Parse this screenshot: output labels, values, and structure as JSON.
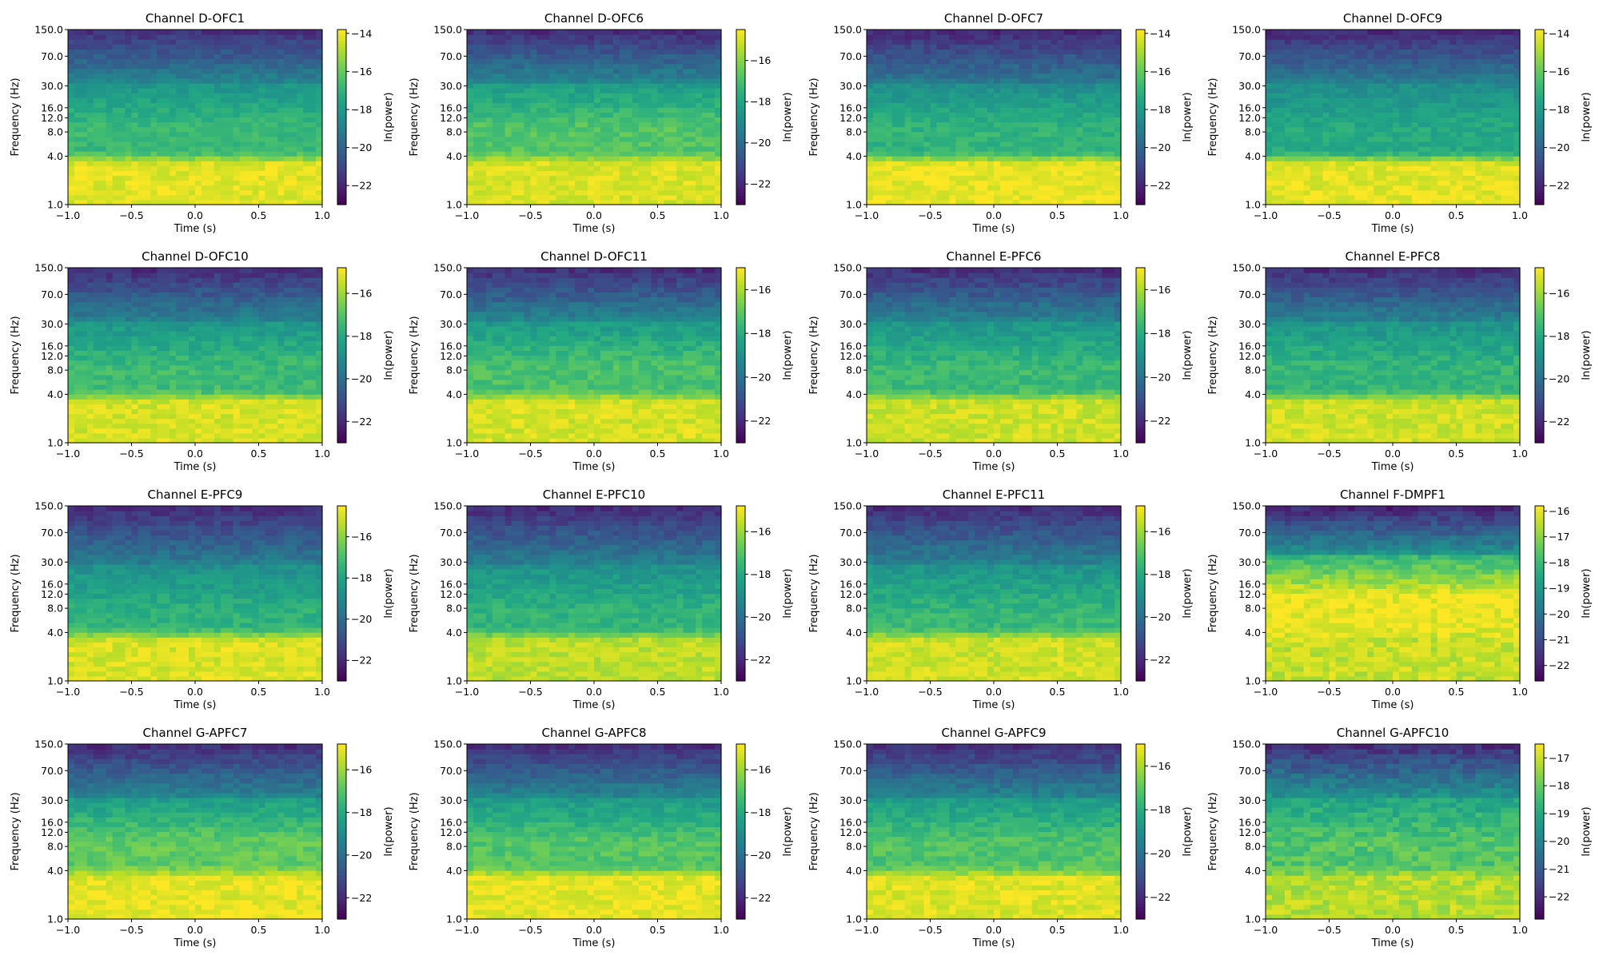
{
  "figure": {
    "subplot_count": 16,
    "grid": "4x4"
  },
  "colors": {
    "colormap": "viridis",
    "axis": "#000000",
    "background": "#ffffff"
  },
  "chart_data": [
    {
      "type": "heatmap",
      "title": "Channel D-OFC1",
      "xlabel": "Time (s)",
      "ylabel": "Frequency (Hz)",
      "colorbar_label": "ln(power)",
      "xlim": [
        -1.0,
        1.0
      ],
      "ylim": [
        1.0,
        150.0
      ],
      "yscale": "log",
      "x_ticks": [
        -1.0,
        -0.5,
        0.0,
        0.5,
        1.0
      ],
      "x_tick_labels": [
        "−1.0",
        "−0.5",
        "0.0",
        "0.5",
        "1.0"
      ],
      "y_ticks": [
        1.0,
        4.0,
        8.0,
        12.0,
        16.0,
        30.0,
        70.0,
        150.0
      ],
      "y_tick_labels": [
        "1.0",
        "4.0",
        "8.0",
        "12.0",
        "16.0",
        "30.0",
        "70.0",
        "150.0"
      ],
      "clim": [
        -23,
        -13.8
      ],
      "colorbar_ticks": [
        -14,
        -16,
        -18,
        -20,
        -22
      ],
      "colorbar_tick_labels": [
        "−14",
        "−16",
        "−18",
        "−20",
        "−22"
      ],
      "profile": {
        "low_freq": -14.2,
        "theta": -16.8,
        "mid": -18.8,
        "high": -21.8,
        "theta_band": [
          4,
          8
        ]
      }
    },
    {
      "type": "heatmap",
      "title": "Channel D-OFC6",
      "xlabel": "Time (s)",
      "ylabel": "Frequency (Hz)",
      "colorbar_label": "ln(power)",
      "xlim": [
        -1.0,
        1.0
      ],
      "ylim": [
        1.0,
        150.0
      ],
      "yscale": "log",
      "x_ticks": [
        -1.0,
        -0.5,
        0.0,
        0.5,
        1.0
      ],
      "x_tick_labels": [
        "−1.0",
        "−0.5",
        "0.0",
        "0.5",
        "1.0"
      ],
      "y_ticks": [
        1.0,
        4.0,
        8.0,
        12.0,
        16.0,
        30.0,
        70.0,
        150.0
      ],
      "y_tick_labels": [
        "1.0",
        "4.0",
        "8.0",
        "12.0",
        "16.0",
        "30.0",
        "70.0",
        "150.0"
      ],
      "clim": [
        -23,
        -14.5
      ],
      "colorbar_ticks": [
        -16,
        -18,
        -20,
        -22
      ],
      "colorbar_tick_labels": [
        "−16",
        "−18",
        "−20",
        "−22"
      ],
      "profile": {
        "low_freq": -15.0,
        "theta": -16.8,
        "mid": -19.0,
        "high": -22.0,
        "theta_band": [
          4,
          8
        ]
      }
    },
    {
      "type": "heatmap",
      "title": "Channel D-OFC7",
      "xlabel": "Time (s)",
      "ylabel": "Frequency (Hz)",
      "colorbar_label": "ln(power)",
      "xlim": [
        -1.0,
        1.0
      ],
      "ylim": [
        1.0,
        150.0
      ],
      "yscale": "log",
      "x_ticks": [
        -1.0,
        -0.5,
        0.0,
        0.5,
        1.0
      ],
      "x_tick_labels": [
        "−1.0",
        "−0.5",
        "0.0",
        "0.5",
        "1.0"
      ],
      "y_ticks": [
        1.0,
        4.0,
        8.0,
        12.0,
        16.0,
        30.0,
        70.0,
        150.0
      ],
      "y_tick_labels": [
        "1.0",
        "4.0",
        "8.0",
        "12.0",
        "16.0",
        "30.0",
        "70.0",
        "150.0"
      ],
      "clim": [
        -23,
        -13.8
      ],
      "colorbar_ticks": [
        -14,
        -16,
        -18,
        -20,
        -22
      ],
      "colorbar_tick_labels": [
        "−14",
        "−16",
        "−18",
        "−20",
        "−22"
      ],
      "profile": {
        "low_freq": -14.1,
        "theta": -17.0,
        "mid": -19.2,
        "high": -22.0,
        "theta_band": [
          4,
          8
        ]
      }
    },
    {
      "type": "heatmap",
      "title": "Channel D-OFC9",
      "xlabel": "Time (s)",
      "ylabel": "Frequency (Hz)",
      "colorbar_label": "ln(power)",
      "xlim": [
        -1.0,
        1.0
      ],
      "ylim": [
        1.0,
        150.0
      ],
      "yscale": "log",
      "x_ticks": [
        -1.0,
        -0.5,
        0.0,
        0.5,
        1.0
      ],
      "x_tick_labels": [
        "−1.0",
        "−0.5",
        "0.0",
        "0.5",
        "1.0"
      ],
      "y_ticks": [
        1.0,
        4.0,
        8.0,
        12.0,
        16.0,
        30.0,
        70.0,
        150.0
      ],
      "y_tick_labels": [
        "1.0",
        "4.0",
        "8.0",
        "12.0",
        "16.0",
        "30.0",
        "70.0",
        "150.0"
      ],
      "clim": [
        -23,
        -13.8
      ],
      "colorbar_ticks": [
        -14,
        -16,
        -18,
        -20,
        -22
      ],
      "colorbar_tick_labels": [
        "−14",
        "−16",
        "−18",
        "−20",
        "−22"
      ],
      "profile": {
        "low_freq": -14.2,
        "theta": -17.4,
        "mid": -19.0,
        "high": -22.0,
        "theta_band": [
          4,
          8
        ]
      }
    },
    {
      "type": "heatmap",
      "title": "Channel D-OFC10",
      "xlabel": "Time (s)",
      "ylabel": "Frequency (Hz)",
      "colorbar_label": "ln(power)",
      "xlim": [
        -1.0,
        1.0
      ],
      "ylim": [
        1.0,
        150.0
      ],
      "yscale": "log",
      "x_ticks": [
        -1.0,
        -0.5,
        0.0,
        0.5,
        1.0
      ],
      "x_tick_labels": [
        "−1.0",
        "−0.5",
        "0.0",
        "0.5",
        "1.0"
      ],
      "y_ticks": [
        1.0,
        4.0,
        8.0,
        12.0,
        16.0,
        30.0,
        70.0,
        150.0
      ],
      "y_tick_labels": [
        "1.0",
        "4.0",
        "8.0",
        "12.0",
        "16.0",
        "30.0",
        "70.0",
        "150.0"
      ],
      "clim": [
        -23,
        -14.8
      ],
      "colorbar_ticks": [
        -16,
        -18,
        -20,
        -22
      ],
      "colorbar_tick_labels": [
        "−16",
        "−18",
        "−20",
        "−22"
      ],
      "profile": {
        "low_freq": -15.3,
        "theta": -17.4,
        "mid": -19.3,
        "high": -22.0,
        "theta_band": [
          4,
          8
        ]
      }
    },
    {
      "type": "heatmap",
      "title": "Channel D-OFC11",
      "xlabel": "Time (s)",
      "ylabel": "Frequency (Hz)",
      "colorbar_label": "ln(power)",
      "xlim": [
        -1.0,
        1.0
      ],
      "ylim": [
        1.0,
        150.0
      ],
      "yscale": "log",
      "x_ticks": [
        -1.0,
        -0.5,
        0.0,
        0.5,
        1.0
      ],
      "x_tick_labels": [
        "−1.0",
        "−0.5",
        "0.0",
        "0.5",
        "1.0"
      ],
      "y_ticks": [
        1.0,
        4.0,
        8.0,
        12.0,
        16.0,
        30.0,
        70.0,
        150.0
      ],
      "y_tick_labels": [
        "1.0",
        "4.0",
        "8.0",
        "12.0",
        "16.0",
        "30.0",
        "70.0",
        "150.0"
      ],
      "clim": [
        -23,
        -15.0
      ],
      "colorbar_ticks": [
        -16,
        -18,
        -20,
        -22
      ],
      "colorbar_tick_labels": [
        "−16",
        "−18",
        "−20",
        "−22"
      ],
      "profile": {
        "low_freq": -15.5,
        "theta": -17.3,
        "mid": -19.3,
        "high": -22.0,
        "theta_band": [
          4,
          8
        ]
      }
    },
    {
      "type": "heatmap",
      "title": "Channel E-PFC6",
      "xlabel": "Time (s)",
      "ylabel": "Frequency (Hz)",
      "colorbar_label": "ln(power)",
      "xlim": [
        -1.0,
        1.0
      ],
      "ylim": [
        1.0,
        150.0
      ],
      "yscale": "log",
      "x_ticks": [
        -1.0,
        -0.5,
        0.0,
        0.5,
        1.0
      ],
      "x_tick_labels": [
        "−1.0",
        "−0.5",
        "0.0",
        "0.5",
        "1.0"
      ],
      "y_ticks": [
        1.0,
        4.0,
        8.0,
        12.0,
        16.0,
        30.0,
        70.0,
        150.0
      ],
      "y_tick_labels": [
        "1.0",
        "4.0",
        "8.0",
        "12.0",
        "16.0",
        "30.0",
        "70.0",
        "150.0"
      ],
      "clim": [
        -23,
        -15.0
      ],
      "colorbar_ticks": [
        -16,
        -18,
        -20,
        -22
      ],
      "colorbar_tick_labels": [
        "−16",
        "−18",
        "−20",
        "−22"
      ],
      "profile": {
        "low_freq": -15.6,
        "theta": -17.6,
        "mid": -19.4,
        "high": -22.0,
        "theta_band": [
          4,
          8
        ]
      }
    },
    {
      "type": "heatmap",
      "title": "Channel E-PFC8",
      "xlabel": "Time (s)",
      "ylabel": "Frequency (Hz)",
      "colorbar_label": "ln(power)",
      "xlim": [
        -1.0,
        1.0
      ],
      "ylim": [
        1.0,
        150.0
      ],
      "yscale": "log",
      "x_ticks": [
        -1.0,
        -0.5,
        0.0,
        0.5,
        1.0
      ],
      "x_tick_labels": [
        "−1.0",
        "−0.5",
        "0.0",
        "0.5",
        "1.0"
      ],
      "y_ticks": [
        1.0,
        4.0,
        8.0,
        12.0,
        16.0,
        30.0,
        70.0,
        150.0
      ],
      "y_tick_labels": [
        "1.0",
        "4.0",
        "8.0",
        "12.0",
        "16.0",
        "30.0",
        "70.0",
        "150.0"
      ],
      "clim": [
        -23,
        -14.8
      ],
      "colorbar_ticks": [
        -16,
        -18,
        -20,
        -22
      ],
      "colorbar_tick_labels": [
        "−16",
        "−18",
        "−20",
        "−22"
      ],
      "profile": {
        "low_freq": -15.4,
        "theta": -17.6,
        "mid": -19.3,
        "high": -22.0,
        "theta_band": [
          4,
          8
        ]
      }
    },
    {
      "type": "heatmap",
      "title": "Channel E-PFC9",
      "xlabel": "Time (s)",
      "ylabel": "Frequency (Hz)",
      "colorbar_label": "ln(power)",
      "xlim": [
        -1.0,
        1.0
      ],
      "ylim": [
        1.0,
        150.0
      ],
      "yscale": "log",
      "x_ticks": [
        -1.0,
        -0.5,
        0.0,
        0.5,
        1.0
      ],
      "x_tick_labels": [
        "−1.0",
        "−0.5",
        "0.0",
        "0.5",
        "1.0"
      ],
      "y_ticks": [
        1.0,
        4.0,
        8.0,
        12.0,
        16.0,
        30.0,
        70.0,
        150.0
      ],
      "y_tick_labels": [
        "1.0",
        "4.0",
        "8.0",
        "12.0",
        "16.0",
        "30.0",
        "70.0",
        "150.0"
      ],
      "clim": [
        -23,
        -14.5
      ],
      "colorbar_ticks": [
        -16,
        -18,
        -20,
        -22
      ],
      "colorbar_tick_labels": [
        "−16",
        "−18",
        "−20",
        "−22"
      ],
      "profile": {
        "low_freq": -15.0,
        "theta": -17.5,
        "mid": -19.3,
        "high": -22.0,
        "theta_band": [
          3,
          6
        ]
      }
    },
    {
      "type": "heatmap",
      "title": "Channel E-PFC10",
      "xlabel": "Time (s)",
      "ylabel": "Frequency (Hz)",
      "colorbar_label": "ln(power)",
      "xlim": [
        -1.0,
        1.0
      ],
      "ylim": [
        1.0,
        150.0
      ],
      "yscale": "log",
      "x_ticks": [
        -1.0,
        -0.5,
        0.0,
        0.5,
        1.0
      ],
      "x_tick_labels": [
        "−1.0",
        "−0.5",
        "0.0",
        "0.5",
        "1.0"
      ],
      "y_ticks": [
        1.0,
        4.0,
        8.0,
        12.0,
        16.0,
        30.0,
        70.0,
        150.0
      ],
      "y_tick_labels": [
        "1.0",
        "4.0",
        "8.0",
        "12.0",
        "16.0",
        "30.0",
        "70.0",
        "150.0"
      ],
      "clim": [
        -23,
        -14.8
      ],
      "colorbar_ticks": [
        -16,
        -18,
        -20,
        -22
      ],
      "colorbar_tick_labels": [
        "−16",
        "−18",
        "−20",
        "−22"
      ],
      "profile": {
        "low_freq": -15.6,
        "theta": -17.6,
        "mid": -19.4,
        "high": -22.0,
        "theta_band": [
          3,
          6
        ]
      }
    },
    {
      "type": "heatmap",
      "title": "Channel E-PFC11",
      "xlabel": "Time (s)",
      "ylabel": "Frequency (Hz)",
      "colorbar_label": "ln(power)",
      "xlim": [
        -1.0,
        1.0
      ],
      "ylim": [
        1.0,
        150.0
      ],
      "yscale": "log",
      "x_ticks": [
        -1.0,
        -0.5,
        0.0,
        0.5,
        1.0
      ],
      "x_tick_labels": [
        "−1.0",
        "−0.5",
        "0.0",
        "0.5",
        "1.0"
      ],
      "y_ticks": [
        1.0,
        4.0,
        8.0,
        12.0,
        16.0,
        30.0,
        70.0,
        150.0
      ],
      "y_tick_labels": [
        "1.0",
        "4.0",
        "8.0",
        "12.0",
        "16.0",
        "30.0",
        "70.0",
        "150.0"
      ],
      "clim": [
        -23,
        -14.8
      ],
      "colorbar_ticks": [
        -16,
        -18,
        -20,
        -22
      ],
      "colorbar_tick_labels": [
        "−16",
        "−18",
        "−20",
        "−22"
      ],
      "profile": {
        "low_freq": -15.4,
        "theta": -17.5,
        "mid": -19.3,
        "high": -22.0,
        "theta_band": [
          3,
          6
        ]
      }
    },
    {
      "type": "heatmap",
      "title": "Channel F-DMPF1",
      "xlabel": "Time (s)",
      "ylabel": "Frequency (Hz)",
      "colorbar_label": "ln(power)",
      "xlim": [
        -1.0,
        1.0
      ],
      "ylim": [
        1.0,
        150.0
      ],
      "yscale": "log",
      "x_ticks": [
        -1.0,
        -0.5,
        0.0,
        0.5,
        1.0
      ],
      "x_tick_labels": [
        "−1.0",
        "−0.5",
        "0.0",
        "0.5",
        "1.0"
      ],
      "y_ticks": [
        1.0,
        4.0,
        8.0,
        12.0,
        16.0,
        30.0,
        70.0,
        150.0
      ],
      "y_tick_labels": [
        "1.0",
        "4.0",
        "8.0",
        "12.0",
        "16.0",
        "30.0",
        "70.0",
        "150.0"
      ],
      "clim": [
        -22.6,
        -15.8
      ],
      "colorbar_ticks": [
        -16,
        -17,
        -18,
        -19,
        -20,
        -21,
        -22
      ],
      "colorbar_tick_labels": [
        "−16",
        "−17",
        "−18",
        "−19",
        "−20",
        "−21",
        "−22"
      ],
      "profile": {
        "low_freq": -16.4,
        "theta": -16.0,
        "mid": -19.0,
        "high": -22.0,
        "theta_band": [
          5,
          10
        ]
      }
    },
    {
      "type": "heatmap",
      "title": "Channel G-APFC7",
      "xlabel": "Time (s)",
      "ylabel": "Frequency (Hz)",
      "colorbar_label": "ln(power)",
      "xlim": [
        -1.0,
        1.0
      ],
      "ylim": [
        1.0,
        150.0
      ],
      "yscale": "log",
      "x_ticks": [
        -1.0,
        -0.5,
        0.0,
        0.5,
        1.0
      ],
      "x_tick_labels": [
        "−1.0",
        "−0.5",
        "0.0",
        "0.5",
        "1.0"
      ],
      "y_ticks": [
        1.0,
        4.0,
        8.0,
        12.0,
        16.0,
        30.0,
        70.0,
        150.0
      ],
      "y_tick_labels": [
        "1.0",
        "4.0",
        "8.0",
        "12.0",
        "16.0",
        "30.0",
        "70.0",
        "150.0"
      ],
      "clim": [
        -23,
        -14.8
      ],
      "colorbar_ticks": [
        -16,
        -18,
        -20,
        -22
      ],
      "colorbar_tick_labels": [
        "−16",
        "−18",
        "−20",
        "−22"
      ],
      "profile": {
        "low_freq": -15.1,
        "theta": -16.8,
        "mid": -19.2,
        "high": -22.0,
        "theta_band": [
          4,
          8
        ]
      }
    },
    {
      "type": "heatmap",
      "title": "Channel G-APFC8",
      "xlabel": "Time (s)",
      "ylabel": "Frequency (Hz)",
      "colorbar_label": "ln(power)",
      "xlim": [
        -1.0,
        1.0
      ],
      "ylim": [
        1.0,
        150.0
      ],
      "yscale": "log",
      "x_ticks": [
        -1.0,
        -0.5,
        0.0,
        0.5,
        1.0
      ],
      "x_tick_labels": [
        "−1.0",
        "−0.5",
        "0.0",
        "0.5",
        "1.0"
      ],
      "y_ticks": [
        1.0,
        4.0,
        8.0,
        12.0,
        16.0,
        30.0,
        70.0,
        150.0
      ],
      "y_tick_labels": [
        "1.0",
        "4.0",
        "8.0",
        "12.0",
        "16.0",
        "30.0",
        "70.0",
        "150.0"
      ],
      "clim": [
        -23,
        -14.8
      ],
      "colorbar_ticks": [
        -16,
        -18,
        -20,
        -22
      ],
      "colorbar_tick_labels": [
        "−16",
        "−18",
        "−20",
        "−22"
      ],
      "profile": {
        "low_freq": -15.1,
        "theta": -17.0,
        "mid": -19.2,
        "high": -22.0,
        "theta_band": [
          4,
          8
        ]
      }
    },
    {
      "type": "heatmap",
      "title": "Channel G-APFC9",
      "xlabel": "Time (s)",
      "ylabel": "Frequency (Hz)",
      "colorbar_label": "ln(power)",
      "xlim": [
        -1.0,
        1.0
      ],
      "ylim": [
        1.0,
        150.0
      ],
      "yscale": "log",
      "x_ticks": [
        -1.0,
        -0.5,
        0.0,
        0.5,
        1.0
      ],
      "x_tick_labels": [
        "−1.0",
        "−0.5",
        "0.0",
        "0.5",
        "1.0"
      ],
      "y_ticks": [
        1.0,
        4.0,
        8.0,
        12.0,
        16.0,
        30.0,
        70.0,
        150.0
      ],
      "y_tick_labels": [
        "1.0",
        "4.0",
        "8.0",
        "12.0",
        "16.0",
        "30.0",
        "70.0",
        "150.0"
      ],
      "clim": [
        -23,
        -15.0
      ],
      "colorbar_ticks": [
        -16,
        -18,
        -20,
        -22
      ],
      "colorbar_tick_labels": [
        "−16",
        "−18",
        "−20",
        "−22"
      ],
      "profile": {
        "low_freq": -15.4,
        "theta": -17.2,
        "mid": -19.3,
        "high": -22.0,
        "theta_band": [
          4,
          8
        ]
      }
    },
    {
      "type": "heatmap",
      "title": "Channel G-APFC10",
      "xlabel": "Time (s)",
      "ylabel": "Frequency (Hz)",
      "colorbar_label": "ln(power)",
      "xlim": [
        -1.0,
        1.0
      ],
      "ylim": [
        1.0,
        150.0
      ],
      "yscale": "log",
      "x_ticks": [
        -1.0,
        -0.5,
        0.0,
        0.5,
        1.0
      ],
      "x_tick_labels": [
        "−1.0",
        "−0.5",
        "0.0",
        "0.5",
        "1.0"
      ],
      "y_ticks": [
        1.0,
        4.0,
        8.0,
        12.0,
        16.0,
        30.0,
        70.0,
        150.0
      ],
      "y_tick_labels": [
        "1.0",
        "4.0",
        "8.0",
        "12.0",
        "16.0",
        "30.0",
        "70.0",
        "150.0"
      ],
      "clim": [
        -22.8,
        -16.5
      ],
      "colorbar_ticks": [
        -17,
        -18,
        -19,
        -20,
        -21,
        -22
      ],
      "colorbar_tick_labels": [
        "−17",
        "−18",
        "−19",
        "−20",
        "−21",
        "−22"
      ],
      "profile": {
        "low_freq": -17.2,
        "theta": -18.2,
        "mid": -19.5,
        "high": -22.0,
        "theta_band": [
          4,
          8
        ]
      }
    }
  ]
}
